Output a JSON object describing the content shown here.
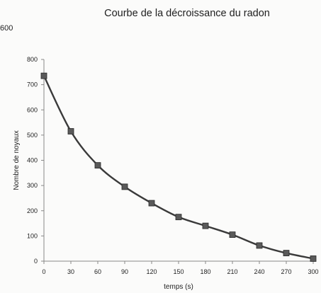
{
  "stray_label": "600",
  "colors": {
    "background": "#fbfbfa",
    "line": "#3a3a3a",
    "marker": "#5a5a5a",
    "marker_edge": "#2a2a2a",
    "axis": "#888888",
    "gridline": "#e6e6e6"
  },
  "chart_data": {
    "type": "line",
    "title": "Courbe de la décroissance du radon",
    "xlabel": "temps (s)",
    "ylabel": "Nombre de noyaux",
    "x": [
      0,
      30,
      60,
      90,
      120,
      150,
      180,
      210,
      240,
      270,
      300
    ],
    "xticks": [
      "0",
      "30",
      "60",
      "90",
      "120",
      "150",
      "180",
      "210",
      "240",
      "270",
      "300"
    ],
    "yticks": [
      "0",
      "100",
      "200",
      "300",
      "400",
      "500",
      "600",
      "700",
      "800"
    ],
    "xlim": [
      0,
      300
    ],
    "ylim": [
      0,
      800
    ],
    "grid": false,
    "series": [
      {
        "marker": "square",
        "values": [
          735,
          515,
          380,
          295,
          230,
          175,
          140,
          105,
          62,
          32,
          10
        ]
      }
    ]
  }
}
